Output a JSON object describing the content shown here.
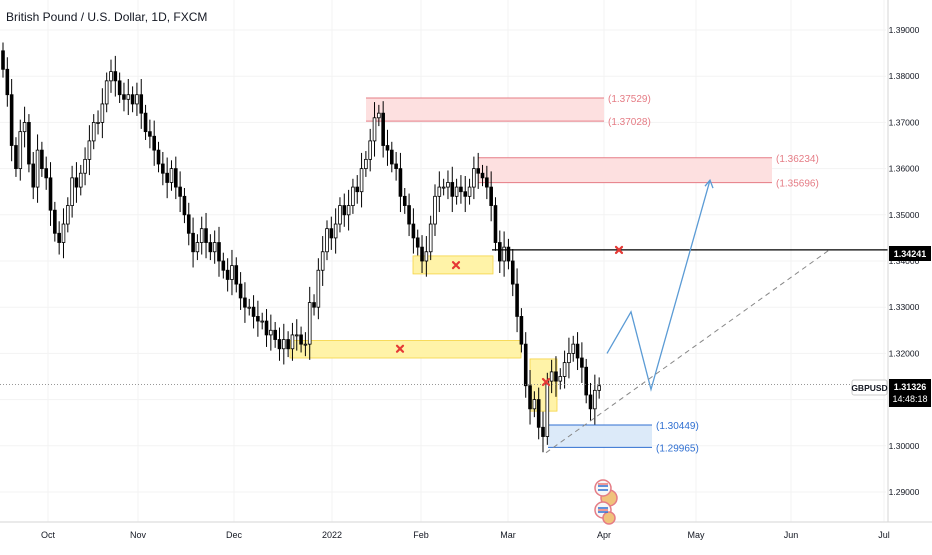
{
  "header": {
    "title": "British Pound / U.S. Dollar, 1D, FXCM"
  },
  "colors": {
    "candle": "#000000",
    "supply_fill": "#fde0e0",
    "supply_stroke": "#e57c85",
    "supply_text": "#e57c85",
    "fvg_fill": "#fff3a8",
    "fvg_stroke": "#f5d442",
    "demand_fill": "#dceaf9",
    "demand_stroke": "#2f6fd1",
    "demand_text": "#2f6fd1",
    "projection": "#5b9bd5",
    "marker": "#e53935",
    "level_line": "#000000",
    "trendline": "#888888"
  },
  "chart_data": {
    "type": "candlestick",
    "symbol": "GBPUSD",
    "ylim": [
      1.2835,
      1.3965
    ],
    "y_ticks": [
      "1.39000",
      "1.38000",
      "1.37000",
      "1.36000",
      "1.35000",
      "1.34000",
      "1.33000",
      "1.32000",
      "1.31000",
      "1.30000",
      "1.29000"
    ],
    "x_ticks": [
      "Oct",
      "Nov",
      "Dec",
      "2022",
      "Feb",
      "Mar",
      "Apr",
      "May",
      "Jun",
      "Jul"
    ],
    "current_price": "1.31326",
    "countdown": "14:48:18",
    "key_level": "1.34241",
    "zones": [
      {
        "kind": "supply",
        "top": 1.37529,
        "bottom": 1.37028,
        "top_label": "(1.37529)",
        "bottom_label": "(1.37028)"
      },
      {
        "kind": "supply",
        "top": 1.36234,
        "bottom": 1.35696,
        "top_label": "(1.36234)",
        "bottom_label": "(1.35696)"
      },
      {
        "kind": "demand",
        "top": 1.30449,
        "bottom": 1.29965,
        "top_label": "(1.30449)",
        "bottom_label": "(1.29965)"
      }
    ],
    "closes": [
      1.3815,
      1.376,
      1.365,
      1.36,
      1.368,
      1.37,
      1.361,
      1.356,
      1.364,
      1.36,
      1.358,
      1.351,
      1.346,
      1.344,
      1.348,
      1.352,
      1.358,
      1.356,
      1.359,
      1.362,
      1.366,
      1.37,
      1.37,
      1.374,
      1.379,
      1.381,
      1.379,
      1.376,
      1.375,
      1.376,
      1.374,
      1.376,
      1.372,
      1.368,
      1.367,
      1.364,
      1.361,
      1.359,
      1.357,
      1.36,
      1.356,
      1.354,
      1.35,
      1.346,
      1.342,
      1.344,
      1.347,
      1.344,
      1.342,
      1.344,
      1.34,
      1.338,
      1.336,
      1.339,
      1.335,
      1.332,
      1.33,
      1.33,
      1.328,
      1.327,
      1.327,
      1.324,
      1.325,
      1.323,
      1.321,
      1.323,
      1.321,
      1.324,
      1.324,
      1.322,
      1.322,
      1.331,
      1.33,
      1.338,
      1.342,
      1.347,
      1.345,
      1.348,
      1.352,
      1.35,
      1.352,
      1.356,
      1.355,
      1.36,
      1.362,
      1.366,
      1.371,
      1.372,
      1.365,
      1.364,
      1.361,
      1.36,
      1.354,
      1.352,
      1.348,
      1.345,
      1.343,
      1.34,
      1.342,
      1.348,
      1.354,
      1.356,
      1.356,
      1.357,
      1.354,
      1.356,
      1.355,
      1.354,
      1.356,
      1.36,
      1.359,
      1.358,
      1.356,
      1.352,
      1.344,
      1.34,
      1.343,
      1.34,
      1.335,
      1.328,
      1.322,
      1.313,
      1.308,
      1.31,
      1.304,
      1.302,
      1.314,
      1.316,
      1.314,
      1.315,
      1.318,
      1.32,
      1.322,
      1.319,
      1.317,
      1.311,
      1.308,
      1.312,
      1.313
    ]
  }
}
